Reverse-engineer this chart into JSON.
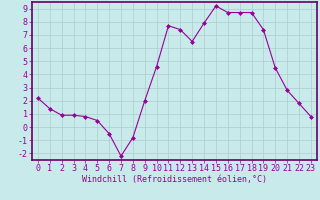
{
  "x": [
    0,
    1,
    2,
    3,
    4,
    5,
    6,
    7,
    8,
    9,
    10,
    11,
    12,
    13,
    14,
    15,
    16,
    17,
    18,
    19,
    20,
    21,
    22,
    23
  ],
  "y": [
    2.2,
    1.4,
    0.9,
    0.9,
    0.8,
    0.5,
    -0.5,
    -2.2,
    -0.8,
    2.0,
    4.6,
    7.7,
    7.4,
    6.5,
    7.9,
    9.2,
    8.7,
    8.7,
    8.7,
    7.4,
    4.5,
    2.8,
    1.8,
    0.8
  ],
  "xlim": [
    -0.5,
    23.5
  ],
  "ylim": [
    -2.5,
    9.5
  ],
  "yticks": [
    -2,
    -1,
    0,
    1,
    2,
    3,
    4,
    5,
    6,
    7,
    8,
    9
  ],
  "xticks": [
    0,
    1,
    2,
    3,
    4,
    5,
    6,
    7,
    8,
    9,
    10,
    11,
    12,
    13,
    14,
    15,
    16,
    17,
    18,
    19,
    20,
    21,
    22,
    23
  ],
  "xlabel": "Windchill (Refroidissement éolien,°C)",
  "line_color": "#990099",
  "marker": "D",
  "marker_size": 2,
  "bg_color": "#c8eaea",
  "grid_color": "#aacccc",
  "border_color": "#660066",
  "tick_label_color": "#990099",
  "xlabel_color": "#990099",
  "xlabel_fontsize": 6,
  "tick_fontsize": 6
}
